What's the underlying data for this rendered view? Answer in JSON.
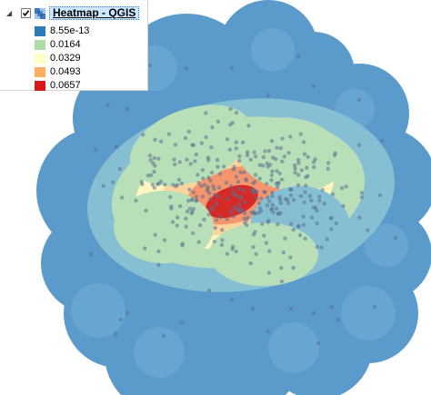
{
  "layer_panel": {
    "layer_name": "Heatmap - QGIS",
    "checked": true,
    "legend": [
      {
        "label": "8.55e-13",
        "color": "#2c7bb6"
      },
      {
        "label": "0.0164",
        "color": "#abdda4"
      },
      {
        "label": "0.0329",
        "color": "#ffffbf"
      },
      {
        "label": "0.0493",
        "color": "#fdae61"
      },
      {
        "label": "0.0657",
        "color": "#d7191c"
      }
    ]
  },
  "map": {
    "type": "point density heatmap",
    "color_ramp": [
      "#5a9bcb",
      "#86bfd3",
      "#b9dfb9",
      "#fff6bf",
      "#fcd59c",
      "#f4956e",
      "#d42b28"
    ],
    "point_color": "#5b6f8e"
  }
}
